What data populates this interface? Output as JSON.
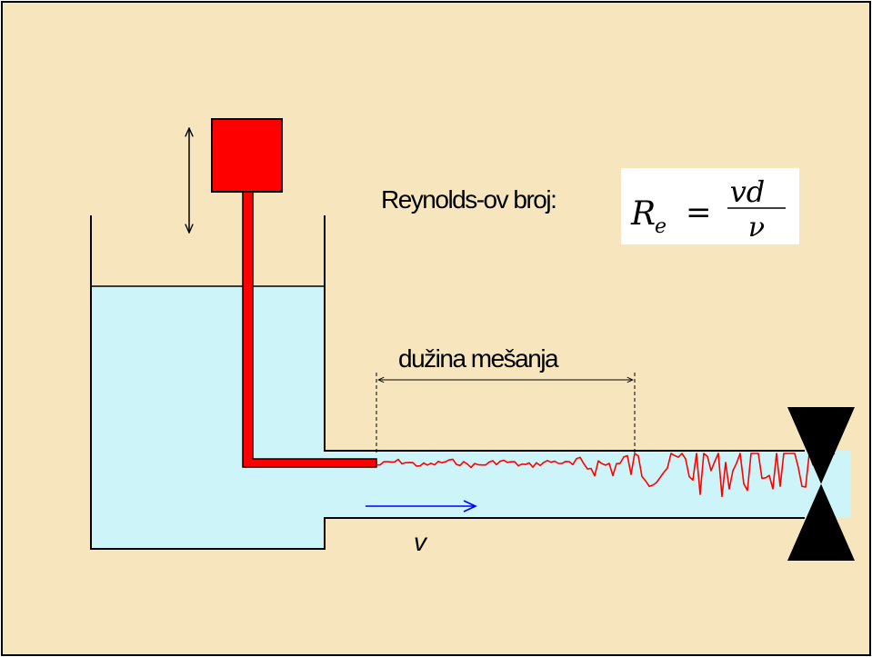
{
  "labels": {
    "reynolds": "Reynolds-ov broj:",
    "mixing_length": "dužina mešanja",
    "velocity": "v"
  },
  "formula": {
    "lhs_symbol": "R",
    "lhs_subscript": "e",
    "equals": "=",
    "numerator": "vd",
    "denominator": "ν"
  },
  "colors": {
    "background": "#f7e6bd",
    "water": "#cdf5f9",
    "dye": "#ff0000",
    "arrow": "#0000ff",
    "valve": "#000000"
  }
}
